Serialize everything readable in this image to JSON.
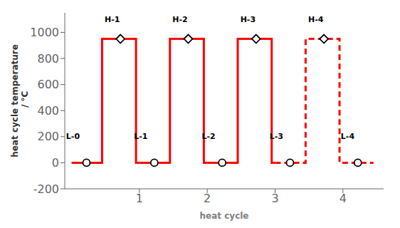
{
  "chart_data": {
    "type": "line",
    "xlabel": "heat cycle",
    "ylabel": "heat cycle temperature\n / °C",
    "xlim": [
      -0.1,
      4.6
    ],
    "ylim": [
      -200,
      1150
    ],
    "xticks": [
      1,
      2,
      3,
      4
    ],
    "yticks": [
      -200,
      0,
      200,
      400,
      600,
      800,
      1000
    ],
    "grid": false,
    "series": [
      {
        "type": "line",
        "color": "#ff0000",
        "line_style": "solid",
        "x": [
          0.0,
          0.45,
          0.45,
          0.95,
          0.95,
          1.0
        ],
        "values": [
          0,
          0,
          950,
          950,
          0,
          0
        ]
      },
      {
        "type": "line",
        "color": "#ff0000",
        "line_style": "solid",
        "x": [
          1.0,
          1.45,
          1.45,
          1.95,
          1.95,
          2.0
        ],
        "values": [
          0,
          0,
          950,
          950,
          0,
          0
        ]
      },
      {
        "type": "line",
        "color": "#ff0000",
        "line_style": "solid",
        "x": [
          2.0,
          2.45,
          2.45,
          2.95,
          2.95,
          3.0
        ],
        "values": [
          0,
          0,
          950,
          950,
          0,
          0
        ]
      },
      {
        "type": "line",
        "color": "#ff0000",
        "line_style": "dashed",
        "x": [
          3.0,
          3.45,
          3.45,
          3.95,
          3.95,
          4.45
        ],
        "values": [
          0,
          0,
          950,
          950,
          0,
          0
        ]
      },
      {
        "type": "scatter",
        "marker": "circle",
        "x": [
          0.22,
          1.22,
          2.22,
          3.22,
          4.22
        ],
        "values": [
          0,
          0,
          0,
          0,
          0
        ]
      },
      {
        "type": "scatter",
        "marker": "diamond",
        "x": [
          0.72,
          1.72,
          2.72,
          3.72
        ],
        "values": [
          950,
          950,
          950,
          950
        ]
      }
    ],
    "annotations": [
      {
        "text": "L-0",
        "x": 0.02,
        "y": 170
      },
      {
        "text": "L-1",
        "x": 1.02,
        "y": 170
      },
      {
        "text": "L-2",
        "x": 2.02,
        "y": 170
      },
      {
        "text": "L-3",
        "x": 3.02,
        "y": 170
      },
      {
        "text": "L-4",
        "x": 4.07,
        "y": 170
      },
      {
        "text": "H-1",
        "x": 0.6,
        "y": 1070
      },
      {
        "text": "H-2",
        "x": 1.6,
        "y": 1070
      },
      {
        "text": "H-3",
        "x": 2.6,
        "y": 1070
      },
      {
        "text": "H-4",
        "x": 3.6,
        "y": 1070
      }
    ]
  }
}
